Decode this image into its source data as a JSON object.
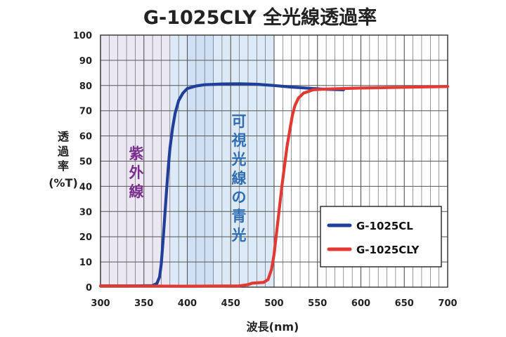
{
  "chart_data": {
    "type": "line",
    "title": "G-1025CLY 全光線透過率",
    "xlabel": "波長(nm)",
    "ylabel_lines": [
      "透",
      "過",
      "率",
      "(%T)"
    ],
    "xlim": [
      300,
      700
    ],
    "ylim": [
      0,
      100
    ],
    "x_ticks": [
      300,
      350,
      400,
      450,
      500,
      550,
      600,
      650,
      700
    ],
    "y_ticks": [
      0,
      10,
      20,
      30,
      40,
      50,
      60,
      70,
      80,
      90,
      100
    ],
    "grid": true,
    "minor_x_step": 10,
    "legend_position": "lower-right",
    "colors": {
      "uv_band": "#ece8f3",
      "blue_band": "#dce9f7",
      "uv_label": "#7a2f8f",
      "blue_label": "#2f6db3",
      "grid": "#555555"
    },
    "bands": [
      {
        "label": "紫外線",
        "x_start": 300,
        "x_end": 380,
        "color": "#ece8f3",
        "text_color": "#7a2f8f",
        "label_x": 325,
        "label_y": 50
      },
      {
        "label": "可視光線の青光",
        "x_start": 380,
        "x_end": 500,
        "color": "#dce9f7",
        "text_color": "#2f6db3",
        "label_x": 380,
        "label_y": 0
      }
    ],
    "band_highlight": {
      "x_start": 400,
      "x_end": 430,
      "color": "#cfe0f4"
    },
    "series": [
      {
        "name": "G-1025CL",
        "color": "#1f3f9a",
        "points": [
          [
            300,
            0.5
          ],
          [
            340,
            0.5
          ],
          [
            360,
            0.6
          ],
          [
            365,
            1.5
          ],
          [
            368,
            4
          ],
          [
            370,
            9
          ],
          [
            372,
            18
          ],
          [
            374,
            28
          ],
          [
            376,
            38
          ],
          [
            378,
            47
          ],
          [
            380,
            55
          ],
          [
            383,
            63
          ],
          [
            386,
            69
          ],
          [
            390,
            74
          ],
          [
            395,
            77
          ],
          [
            400,
            78.8
          ],
          [
            410,
            79.8
          ],
          [
            420,
            80.3
          ],
          [
            440,
            80.6
          ],
          [
            460,
            80.7
          ],
          [
            480,
            80.5
          ],
          [
            500,
            80
          ],
          [
            520,
            79.4
          ],
          [
            540,
            78.9
          ],
          [
            560,
            78.5
          ],
          [
            580,
            78.3
          ]
        ]
      },
      {
        "name": "G-1025CLY",
        "color": "#e23a32",
        "points": [
          [
            300,
            0.5
          ],
          [
            400,
            0.4
          ],
          [
            460,
            0.5
          ],
          [
            470,
            1
          ],
          [
            475,
            1.6
          ],
          [
            480,
            1.7
          ],
          [
            488,
            1.9
          ],
          [
            493,
            3
          ],
          [
            497,
            7
          ],
          [
            500,
            13
          ],
          [
            503,
            22
          ],
          [
            506,
            31
          ],
          [
            509,
            40
          ],
          [
            512,
            48
          ],
          [
            515,
            56
          ],
          [
            518,
            62
          ],
          [
            521,
            68
          ],
          [
            524,
            72
          ],
          [
            528,
            75
          ],
          [
            534,
            77
          ],
          [
            545,
            78.3
          ],
          [
            560,
            78.6
          ],
          [
            600,
            79
          ],
          [
            650,
            79.3
          ],
          [
            700,
            79.6
          ]
        ]
      }
    ]
  }
}
